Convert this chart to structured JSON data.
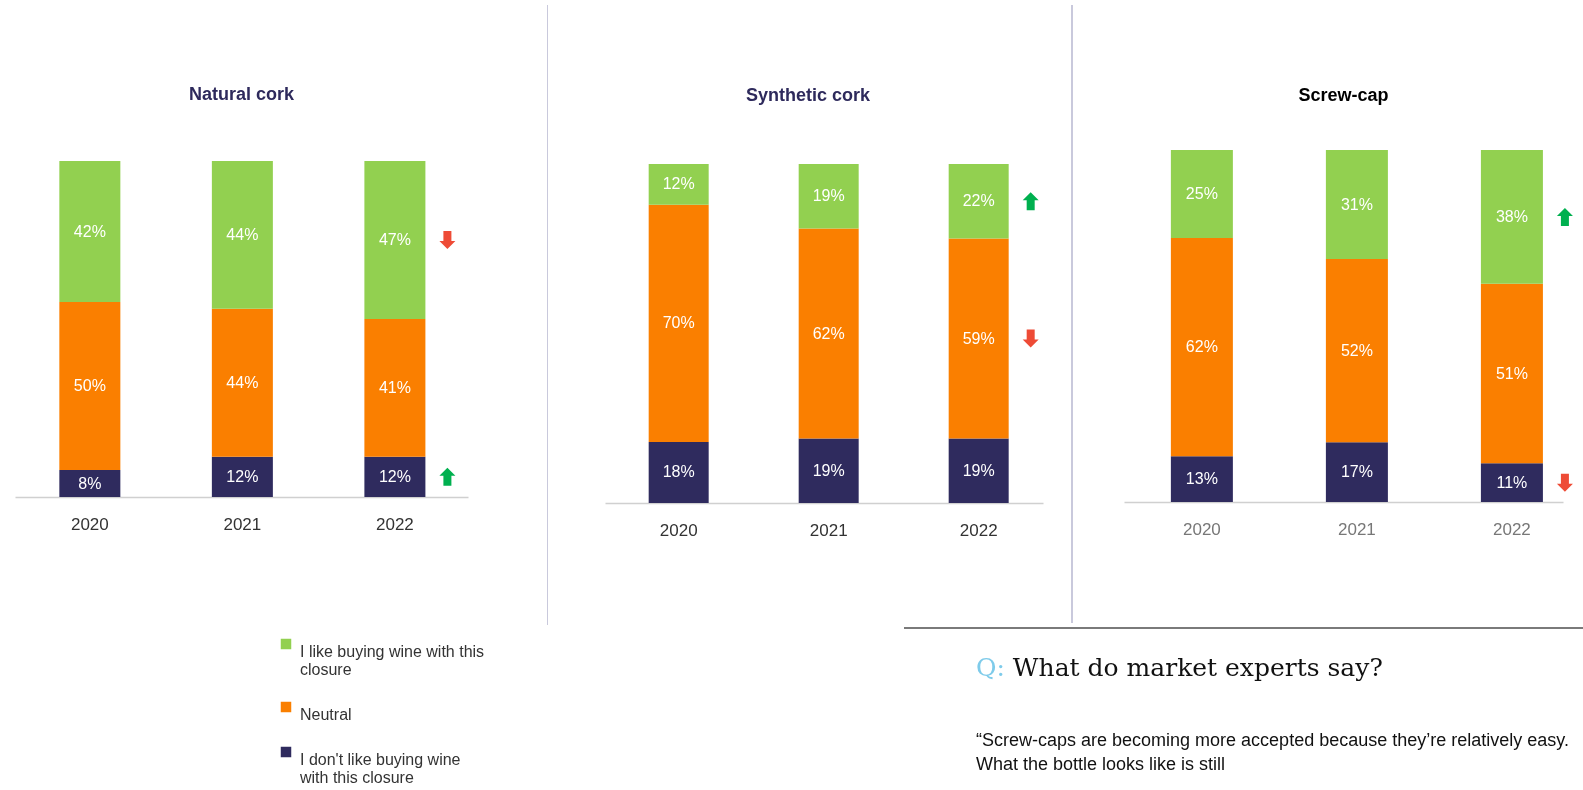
{
  "chart_data": [
    {
      "type": "bar",
      "title": "Natural cork",
      "categories": [
        "2020",
        "2021",
        "2022"
      ],
      "stacked": true,
      "legend": "bottom",
      "series": [
        {
          "name": "I don't like buying wine with this closure",
          "color": "#2f2b5e",
          "values": [
            8,
            12,
            12
          ],
          "value_labels": [
            "8%",
            "12%",
            "12%"
          ]
        },
        {
          "name": "Neutral",
          "color": "#fa7f00",
          "values": [
            50,
            44,
            41
          ],
          "value_labels": [
            "50%",
            "44%",
            "41%"
          ]
        },
        {
          "name": "I like buying wine with this closure",
          "color": "#92d050",
          "values": [
            42,
            44,
            47
          ],
          "value_labels": [
            "42%",
            "44%",
            "47%"
          ]
        }
      ]
    },
    {
      "type": "bar",
      "title": "Synthetic cork",
      "categories": [
        "2020",
        "2021",
        "2022"
      ],
      "stacked": true,
      "series": [
        {
          "color": "#2f2b5e",
          "values": [
            18,
            19,
            19
          ],
          "value_labels": [
            "18%",
            "19%",
            "19%"
          ]
        },
        {
          "color": "#fa7f00",
          "values": [
            70,
            62,
            59
          ],
          "value_labels": [
            "70%",
            "62%",
            "59%"
          ]
        },
        {
          "color": "#92d050",
          "values": [
            12,
            19,
            22
          ],
          "value_labels": [
            "12%",
            "19%",
            "22%"
          ]
        }
      ]
    },
    {
      "type": "bar",
      "title": "Screw-cap",
      "categories": [
        "2020",
        "2021",
        "2022"
      ],
      "stacked": true,
      "series": [
        {
          "color": "#2f2b5e",
          "values": [
            13,
            17,
            11
          ],
          "value_labels": [
            "13%",
            "17%",
            "11%"
          ]
        },
        {
          "color": "#fa7f00",
          "values": [
            62,
            52,
            51
          ],
          "value_labels": [
            "62%",
            "52%",
            "51%"
          ]
        },
        {
          "color": "#92d050",
          "values": [
            25,
            31,
            38
          ],
          "value_labels": [
            "25%",
            "31%",
            "38%"
          ]
        }
      ]
    },
    {
      "type": "other",
      "title": "Q: What do market experts say?",
      "annotations": [
        "“Screw-caps are becoming more accepted because they’re relatively easy. What the bottle looks like is still"
      ]
    }
  ]
}
